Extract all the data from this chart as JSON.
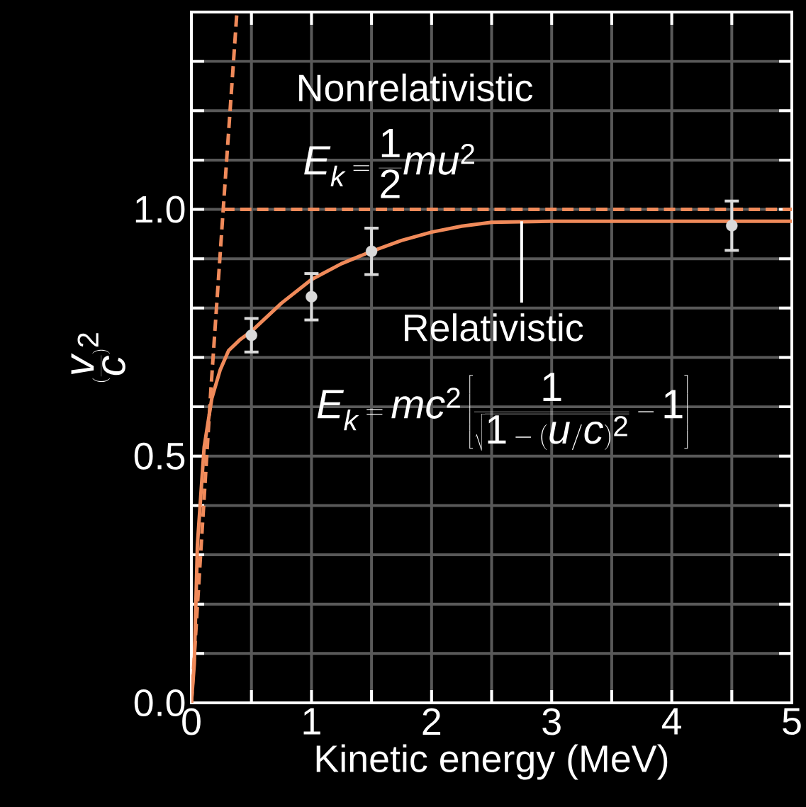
{
  "chart_data": {
    "type": "line",
    "xlabel": "Kinetic energy (MeV)",
    "ylabel": "\\Bigl(\\frac{v}{c}\\Bigr)^{2}",
    "xlim": [
      0,
      5
    ],
    "ylim": [
      0,
      1.4
    ],
    "xticks": [
      0,
      {
        "value": 0.5,
        "label": null
      },
      1,
      {
        "value": 1.5,
        "label": null
      },
      2,
      {
        "value": 2.5,
        "label": null
      },
      3,
      {
        "value": 3.5,
        "label": null
      },
      4,
      {
        "value": 4.5,
        "label": null
      },
      5
    ],
    "yticks": [
      {
        "value": 0,
        "label": "0.0"
      },
      {
        "value": 0.1,
        "label": null
      },
      {
        "value": 0.2,
        "label": null
      },
      {
        "value": 0.3,
        "label": null
      },
      {
        "value": 0.4,
        "label": null
      },
      0.5,
      {
        "value": 0.6,
        "label": null
      },
      {
        "value": 0.7,
        "label": null
      },
      {
        "value": 0.8,
        "label": null
      },
      {
        "value": 0.9,
        "label": null
      },
      {
        "value": 1.0,
        "label": "1.0"
      },
      {
        "value": 1.1,
        "label": null
      },
      {
        "value": 1.2,
        "label": null
      },
      {
        "value": 1.3,
        "label": null
      }
    ],
    "grid": true,
    "series": [
      {
        "color": "#f08a5a",
        "line_style": "solid",
        "x": [
          0,
          0.024,
          0.05,
          0.106,
          0.17,
          0.24,
          0.31,
          0.4,
          0.5,
          0.75,
          1.0,
          1.25,
          1.5,
          1.75,
          2.0,
          2.25,
          2.5,
          3.0,
          4.0,
          5.0
        ],
        "values": [
          0,
          0.079,
          0.32,
          0.518,
          0.617,
          0.675,
          0.714,
          0.735,
          0.753,
          0.81,
          0.858,
          0.89,
          0.915,
          0.937,
          0.954,
          0.966,
          0.974,
          0.976,
          0.976,
          0.976
        ]
      },
      {
        "color": "#f08a5a",
        "line_style": "dashed",
        "x": [
          0,
          0.162,
          0.265,
          0.378
        ],
        "values": [
          0,
          0.634,
          1.0,
          1.396
        ]
      },
      {
        "color": "#f08a5a",
        "line_style": "dashed",
        "x": [
          0.265,
          5
        ],
        "values": [
          1.0,
          1.0
        ]
      },
      {
        "type": "scatter",
        "color": "#d9d9d9",
        "marker": "circle",
        "x": [
          0.5,
          1.0,
          1.5,
          4.5
        ],
        "values": [
          0.745,
          0.823,
          0.915,
          0.967
        ],
        "errors": [
          0.034,
          0.047,
          0.047,
          0.05
        ]
      }
    ],
    "annotations": [
      "Nonrelativistic",
      "E_k = \\frac{1}{2}mu^2",
      {
        "text": "Relativistic",
        "x": 2.75,
        "y": 0.976
      },
      "E_k = mc^2\\left[\\frac{1}{\\sqrt{1-(u/c)^2}}-1\\right]"
    ]
  }
}
